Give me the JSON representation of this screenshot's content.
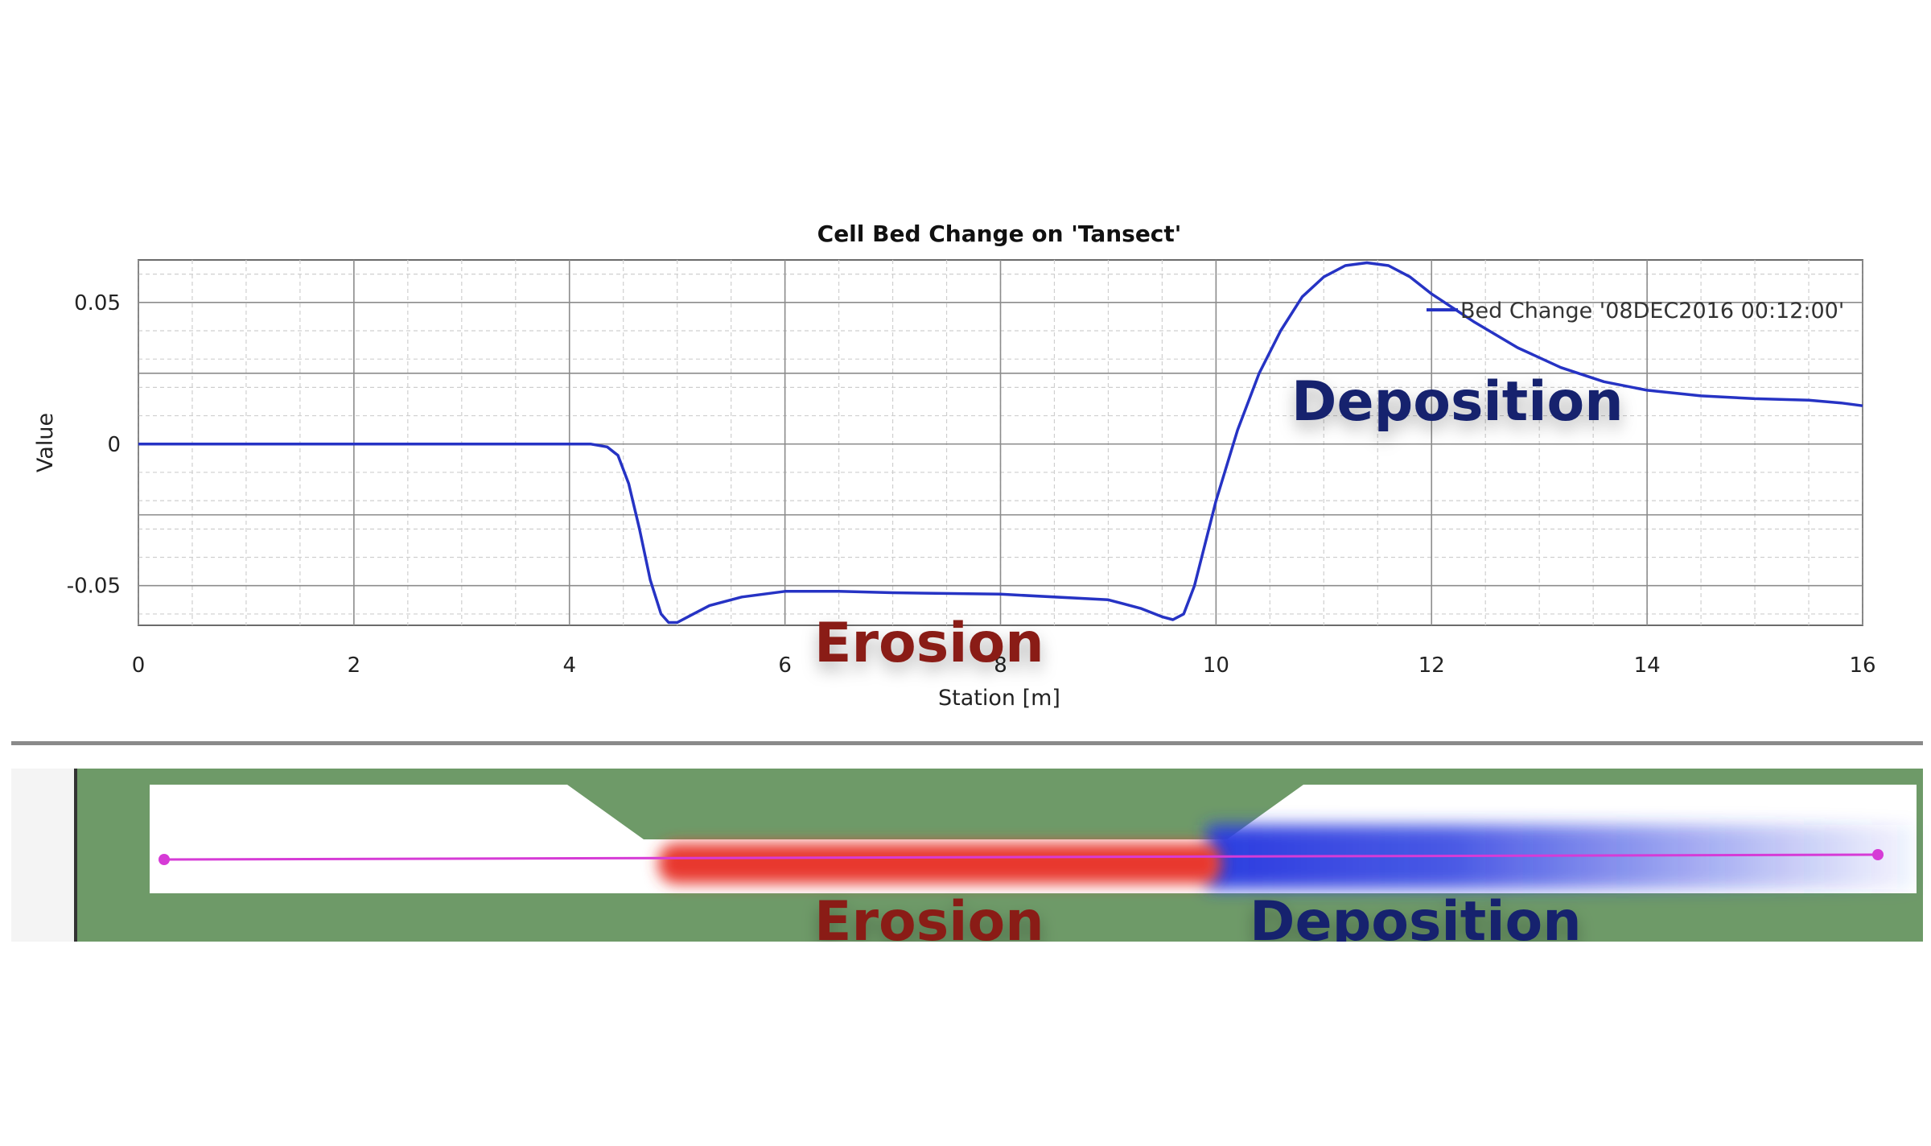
{
  "chart_data": {
    "type": "line",
    "title": "Cell Bed Change on 'Tansect'",
    "xlabel": "Station [m]",
    "ylabel": "Value",
    "xlim": [
      0,
      16
    ],
    "ylim": [
      -0.064,
      0.065
    ],
    "xticks": [
      0,
      2,
      4,
      6,
      8,
      10,
      12,
      14,
      16
    ],
    "yticks": [
      -0.05,
      0,
      0.05
    ],
    "ytick_labels": [
      "-0.05",
      "0",
      "0.05"
    ],
    "grid": true,
    "legend_position": "top-right",
    "series": [
      {
        "name": "Bed Change '08DEC2016 00:12:00'",
        "color": "#2633c4",
        "x": [
          0,
          1,
          2,
          3,
          4,
          4.2,
          4.35,
          4.45,
          4.55,
          4.65,
          4.75,
          4.85,
          4.92,
          5.0,
          5.1,
          5.3,
          5.6,
          6.0,
          6.5,
          7.0,
          8.0,
          9.0,
          9.3,
          9.5,
          9.6,
          9.7,
          9.8,
          9.9,
          10.0,
          10.2,
          10.4,
          10.6,
          10.8,
          11.0,
          11.2,
          11.4,
          11.6,
          11.8,
          12.0,
          12.4,
          12.8,
          13.2,
          13.6,
          14.0,
          14.5,
          15.0,
          15.5,
          15.8,
          16.0
        ],
        "y": [
          0,
          0,
          0,
          0,
          0,
          0,
          -0.001,
          -0.004,
          -0.014,
          -0.03,
          -0.048,
          -0.06,
          -0.063,
          -0.063,
          -0.061,
          -0.057,
          -0.054,
          -0.052,
          -0.052,
          -0.0525,
          -0.053,
          -0.055,
          -0.058,
          -0.061,
          -0.062,
          -0.06,
          -0.05,
          -0.035,
          -0.02,
          0.005,
          0.025,
          0.04,
          0.052,
          0.059,
          0.063,
          0.064,
          0.063,
          0.059,
          0.053,
          0.043,
          0.034,
          0.027,
          0.022,
          0.019,
          0.017,
          0.016,
          0.0155,
          0.0145,
          0.0135
        ]
      }
    ],
    "annotations": {
      "erosion": "Erosion",
      "deposition": "Deposition"
    }
  },
  "map_panel": {
    "erosion_label": "Erosion",
    "deposition_label": "Deposition",
    "colors": {
      "terrain": "#6e9a68",
      "channel": "#ffffff",
      "erosion": "#e8392f",
      "deposition": "#2b3de0",
      "transect": "#d63bd6"
    }
  }
}
